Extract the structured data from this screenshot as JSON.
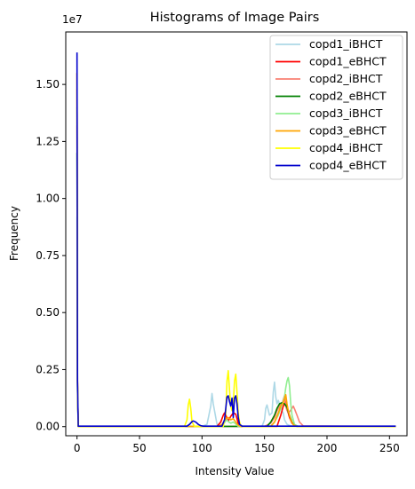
{
  "chart_data": {
    "type": "line",
    "title": "Histograms of Image Pairs",
    "xlabel": "Intensity Value",
    "ylabel": "Frequency",
    "y_offset_label": "1e7",
    "xlim": [
      -9,
      264
    ],
    "ylim": [
      -400000,
      17300000
    ],
    "x_ticks": [
      0,
      50,
      100,
      150,
      200,
      250
    ],
    "x_tick_labels": [
      "0",
      "50",
      "100",
      "150",
      "200",
      "250"
    ],
    "y_ticks": [
      0,
      2500000,
      5000000,
      7500000,
      10000000,
      12500000,
      15000000
    ],
    "y_tick_labels": [
      "0.00",
      "0.25",
      "0.50",
      "0.75",
      "1.00",
      "1.25",
      "1.50"
    ],
    "grid": false,
    "legend_position": "top-right",
    "series": [
      {
        "name": "copd1_iBHCT",
        "color": "#add8e6",
        "x": [
          0,
          0.4,
          1,
          2,
          100,
          104,
          107,
          108,
          109,
          112,
          116,
          148,
          150,
          151,
          152,
          154,
          156,
          157,
          158,
          159,
          160,
          161,
          162,
          163,
          164,
          165,
          166,
          168,
          171,
          176,
          255
        ],
        "y": [
          9200000,
          1500000,
          10000,
          10000,
          10000,
          100000,
          900000,
          1450000,
          1000000,
          100000,
          10000,
          10000,
          300000,
          800000,
          950000,
          500000,
          600000,
          1500000,
          1950000,
          1300000,
          1000000,
          1150000,
          1000000,
          900000,
          700000,
          600000,
          300000,
          100000,
          30000,
          10000,
          10000
        ]
      },
      {
        "name": "copd1_eBHCT",
        "color": "#ff0000",
        "x": [
          0,
          0.4,
          1,
          2,
          112,
          115,
          117,
          118,
          119,
          120,
          121,
          123,
          125,
          127,
          128,
          129,
          130,
          132,
          160,
          163,
          165,
          167,
          168,
          170,
          172,
          175,
          255
        ],
        "y": [
          15500000,
          2000000,
          10000,
          10000,
          10000,
          200000,
          500000,
          600000,
          520000,
          350000,
          250000,
          450000,
          600000,
          550000,
          350000,
          120000,
          30000,
          10000,
          10000,
          500000,
          900000,
          1100000,
          800000,
          400000,
          150000,
          20000,
          10000
        ]
      },
      {
        "name": "copd2_iBHCT",
        "color": "#fa8072",
        "x": [
          0,
          0.4,
          1,
          2,
          150,
          155,
          158,
          160,
          162,
          164,
          166,
          167,
          168,
          170,
          172,
          173,
          174,
          176,
          178,
          181,
          255
        ],
        "y": [
          13200000,
          1800000,
          10000,
          10000,
          10000,
          150000,
          400000,
          700000,
          900000,
          1000000,
          1350000,
          900000,
          700000,
          650000,
          800000,
          900000,
          780000,
          500000,
          200000,
          30000,
          10000
        ]
      },
      {
        "name": "copd2_eBHCT",
        "color": "#008000",
        "x": [
          0,
          0.4,
          1,
          2,
          152,
          155,
          158,
          160,
          162,
          164,
          166,
          168,
          169,
          170,
          172,
          174,
          176,
          255
        ],
        "y": [
          12000000,
          1600000,
          10000,
          10000,
          10000,
          200000,
          500000,
          800000,
          1000000,
          1050000,
          1000000,
          850000,
          650000,
          500000,
          200000,
          60000,
          10000,
          10000
        ]
      },
      {
        "name": "copd3_iBHCT",
        "color": "#90ee90",
        "x": [
          0,
          0.4,
          1,
          2,
          114,
          117,
          119,
          120,
          121,
          123,
          125,
          127,
          129,
          155,
          158,
          161,
          163,
          165,
          166,
          167,
          168,
          169,
          170,
          171,
          172,
          174,
          177,
          255
        ],
        "y": [
          14000000,
          1800000,
          10000,
          10000,
          10000,
          100000,
          250000,
          300000,
          220000,
          150000,
          200000,
          120000,
          10000,
          10000,
          200000,
          500000,
          800000,
          1100000,
          1300000,
          1700000,
          2000000,
          2150000,
          1800000,
          1000000,
          500000,
          100000,
          10000,
          10000
        ]
      },
      {
        "name": "copd3_eBHCT",
        "color": "#ffa500",
        "x": [
          0,
          0.4,
          1,
          2,
          113,
          116,
          118,
          119,
          121,
          123,
          125,
          127,
          129,
          131,
          155,
          158,
          161,
          163,
          165,
          166,
          167,
          168,
          169,
          171,
          173,
          176,
          255
        ],
        "y": [
          14800000,
          1900000,
          10000,
          10000,
          10000,
          100000,
          250000,
          350000,
          400000,
          300000,
          350000,
          200000,
          60000,
          10000,
          10000,
          200000,
          600000,
          900000,
          1050000,
          1200000,
          1400000,
          1000000,
          700000,
          300000,
          80000,
          10000,
          10000
        ]
      },
      {
        "name": "copd4_iBHCT",
        "color": "#ffff00",
        "x": [
          0,
          0.4,
          1,
          2,
          86,
          88,
          89,
          90,
          91,
          92,
          94,
          117,
          119,
          120,
          121,
          122,
          123,
          124,
          125,
          126,
          127,
          128,
          129,
          130,
          131,
          133,
          255
        ],
        "y": [
          15500000,
          2000000,
          10000,
          10000,
          10000,
          300000,
          950000,
          1200000,
          800000,
          200000,
          10000,
          10000,
          600000,
          2000000,
          2450000,
          1600000,
          900000,
          700000,
          1000000,
          2000000,
          2300000,
          1500000,
          600000,
          200000,
          50000,
          10000,
          10000
        ]
      },
      {
        "name": "copd4_eBHCT",
        "color": "#0000cd",
        "x": [
          0,
          0.4,
          1,
          2,
          88,
          90,
          92,
          93,
          95,
          97,
          99,
          101,
          116,
          118,
          119,
          120,
          121,
          122,
          123,
          124,
          125,
          126,
          127,
          128,
          129,
          130,
          132,
          255
        ],
        "y": [
          16400000,
          2000000,
          20000,
          20000,
          20000,
          100000,
          220000,
          250000,
          200000,
          100000,
          40000,
          20000,
          20000,
          300000,
          800000,
          1300000,
          1350000,
          1100000,
          900000,
          1250000,
          400000,
          1250000,
          1350000,
          1000000,
          400000,
          100000,
          20000,
          20000
        ]
      }
    ]
  }
}
